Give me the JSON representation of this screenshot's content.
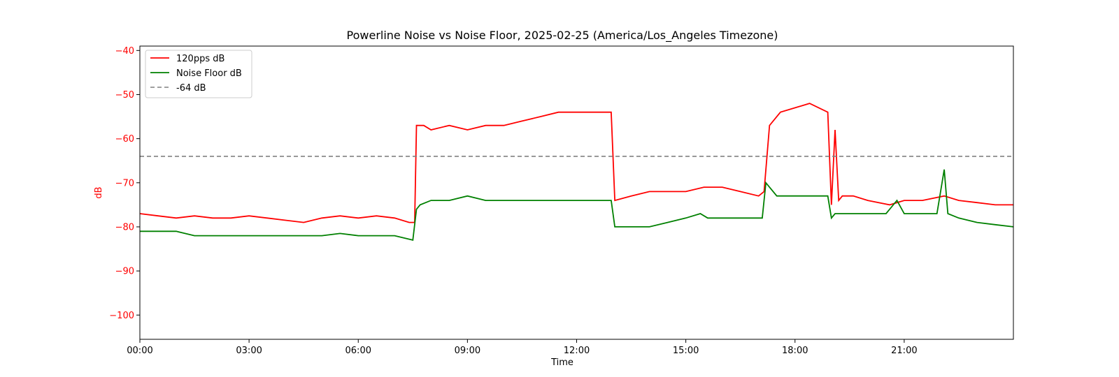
{
  "chart_data": {
    "type": "line",
    "title": "Powerline Noise vs Noise Floor, 2025-02-25 (America/Los_Angeles Timezone)",
    "xlabel": "Time",
    "ylabel": "dB",
    "xlim": [
      "00:00",
      "24:00"
    ],
    "ylim": [
      -105.5,
      -39
    ],
    "x_ticks": [
      "00:00",
      "03:00",
      "06:00",
      "09:00",
      "12:00",
      "15:00",
      "18:00",
      "21:00"
    ],
    "y_ticks": [
      -40,
      -50,
      -60,
      -70,
      -80,
      -90,
      -100
    ],
    "grid": false,
    "legend_position": "top-left",
    "colors": {
      "series_1": "#ff0000",
      "series_2": "#008000",
      "reference": "#808080",
      "ylabel": "#ff0000"
    },
    "series": [
      {
        "name": "120pps dB",
        "x_hours": [
          0,
          0.5,
          1,
          1.5,
          2,
          2.5,
          3,
          3.5,
          4,
          4.5,
          5,
          5.5,
          6,
          6.5,
          7,
          7.4,
          7.55,
          7.6,
          7.8,
          8,
          8.5,
          9,
          9.5,
          10,
          10.5,
          11,
          11.5,
          12,
          12.5,
          12.95,
          13.05,
          13.5,
          14,
          14.5,
          15,
          15.5,
          16,
          16.5,
          17,
          17.15,
          17.3,
          17.6,
          18,
          18.4,
          18.9,
          19.0,
          19.1,
          19.2,
          19.3,
          19.6,
          20,
          20.6,
          21,
          21.5,
          22.1,
          22.5,
          23,
          23.5,
          24
        ],
        "values": [
          -77,
          -77.5,
          -78,
          -77.5,
          -78,
          -78,
          -77.5,
          -78,
          -78.5,
          -79,
          -78,
          -77.5,
          -78,
          -77.5,
          -78,
          -79,
          -79,
          -57,
          -57,
          -58,
          -57,
          -58,
          -57,
          -57,
          -56,
          -55,
          -54,
          -54,
          -54,
          -54,
          -74,
          -73,
          -72,
          -72,
          -72,
          -71,
          -71,
          -72,
          -73,
          -72,
          -57,
          -54,
          -53,
          -52,
          -54,
          -75,
          -58,
          -74,
          -73,
          -73,
          -74,
          -75,
          -74,
          -74,
          -73,
          -74,
          -74.5,
          -75,
          -75
        ]
      },
      {
        "name": "Noise Floor dB",
        "x_hours": [
          0,
          0.5,
          1,
          1.5,
          2,
          2.5,
          3,
          3.5,
          4,
          4.5,
          5,
          5.5,
          6,
          6.5,
          7,
          7.5,
          7.6,
          7.7,
          8,
          8.5,
          9,
          9.5,
          10,
          10.5,
          11,
          11.5,
          12,
          12.5,
          12.95,
          13.05,
          13.5,
          14,
          14.5,
          15,
          15.4,
          15.6,
          16,
          16.5,
          17,
          17.1,
          17.2,
          17.5,
          18,
          18.5,
          18.9,
          19.0,
          19.1,
          19.5,
          20,
          20.5,
          20.8,
          21,
          21.5,
          21.9,
          22.1,
          22.2,
          22.5,
          23,
          23.5,
          24
        ],
        "values": [
          -81,
          -81,
          -81,
          -82,
          -82,
          -82,
          -82,
          -82,
          -82,
          -82,
          -82,
          -81.5,
          -82,
          -82,
          -82,
          -83,
          -76,
          -75,
          -74,
          -74,
          -73,
          -74,
          -74,
          -74,
          -74,
          -74,
          -74,
          -74,
          -74,
          -80,
          -80,
          -80,
          -79,
          -78,
          -77,
          -78,
          -78,
          -78,
          -78,
          -78,
          -70,
          -73,
          -73,
          -73,
          -73,
          -78,
          -77,
          -77,
          -77,
          -77,
          -74,
          -77,
          -77,
          -77,
          -67,
          -77,
          -78,
          -79,
          -79.5,
          -80
        ]
      },
      {
        "name": "-64 dB",
        "style": "dashed",
        "constant": -64
      }
    ]
  }
}
